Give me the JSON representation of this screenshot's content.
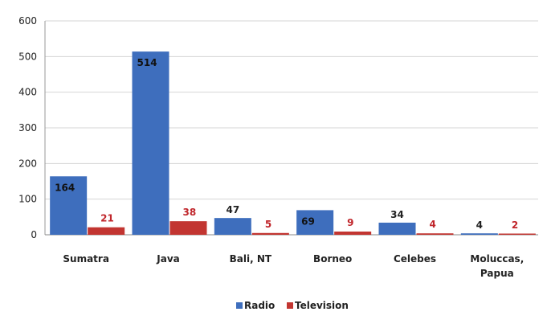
{
  "chart_data": {
    "type": "bar",
    "categories": [
      "Sumatra",
      "Java",
      "Bali, NT",
      "Borneo",
      "Celebes",
      "Moluccas, Papua"
    ],
    "series": [
      {
        "name": "Radio",
        "values": [
          164,
          514,
          47,
          69,
          34,
          4
        ],
        "color": "#3e6ebd"
      },
      {
        "name": "Television",
        "values": [
          21,
          38,
          5,
          9,
          4,
          2
        ],
        "color": "#c23531"
      }
    ],
    "ylim": [
      0,
      600
    ],
    "yticks": [
      0,
      100,
      200,
      300,
      400,
      500,
      600
    ],
    "grid": true,
    "legend": "bottom",
    "title": "",
    "xlabel": "",
    "ylabel": ""
  }
}
